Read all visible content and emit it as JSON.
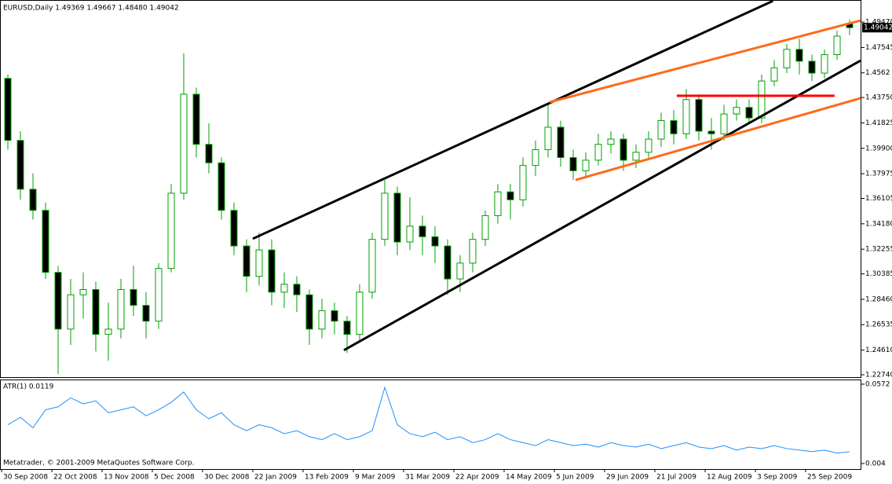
{
  "chart_data": {
    "type": "candlestick",
    "title": "EURUSD,Daily  1.49369 1.49667 1.48480 1.49042",
    "categories": [
      "30 Sep 2008",
      null,
      null,
      null,
      "22 Oct 2008",
      null,
      null,
      null,
      "13 Nov 2008",
      null,
      null,
      null,
      "5 Dec 2008",
      null,
      null,
      null,
      "30 Dec 2008",
      null,
      null,
      null,
      "22 Jan 2009",
      null,
      null,
      null,
      "13 Feb 2009",
      null,
      null,
      null,
      "9 Mar 2009",
      null,
      null,
      null,
      "31 Mar 2009",
      null,
      null,
      null,
      "22 Apr 2009",
      null,
      null,
      null,
      "14 May 2009",
      null,
      null,
      null,
      "5 Jun 2009",
      null,
      null,
      null,
      "29 Jun 2009",
      null,
      null,
      null,
      "21 Jul 2009",
      null,
      null,
      null,
      "12 Aug 2009",
      null,
      null,
      null,
      "3 Sep 2009",
      null,
      null,
      null,
      "25 Sep 2009",
      null,
      null,
      null
    ],
    "open": [
      1.452,
      1.405,
      1.368,
      1.352,
      1.305,
      1.262,
      1.288,
      1.292,
      1.258,
      1.262,
      1.292,
      1.28,
      1.268,
      1.308,
      1.365,
      1.44,
      1.402,
      1.388,
      1.352,
      1.325,
      1.302,
      1.322,
      1.29,
      1.296,
      1.288,
      1.262,
      1.276,
      1.268,
      1.258,
      1.29,
      1.33,
      1.365,
      1.328,
      1.34,
      1.332,
      1.325,
      1.3,
      1.312,
      1.33,
      1.348,
      1.366,
      1.36,
      1.386,
      1.398,
      1.415,
      1.392,
      1.382,
      1.39,
      1.402,
      1.406,
      1.39,
      1.396,
      1.406,
      1.42,
      1.41,
      1.436,
      1.412,
      1.41,
      1.425,
      1.43,
      1.422,
      1.45,
      1.46,
      1.474,
      1.465,
      1.456,
      1.47,
      1.49369
    ],
    "high": [
      1.455,
      1.412,
      1.38,
      1.358,
      1.31,
      1.3,
      1.305,
      1.298,
      1.282,
      1.3,
      1.31,
      1.29,
      1.312,
      1.372,
      1.471,
      1.445,
      1.418,
      1.392,
      1.358,
      1.33,
      1.335,
      1.33,
      1.305,
      1.302,
      1.292,
      1.285,
      1.282,
      1.272,
      1.296,
      1.335,
      1.375,
      1.37,
      1.362,
      1.348,
      1.34,
      1.33,
      1.318,
      1.335,
      1.352,
      1.372,
      1.372,
      1.392,
      1.405,
      1.432,
      1.42,
      1.398,
      1.396,
      1.41,
      1.412,
      1.41,
      1.402,
      1.412,
      1.426,
      1.428,
      1.444,
      1.44,
      1.422,
      1.432,
      1.436,
      1.436,
      1.455,
      1.466,
      1.478,
      1.482,
      1.47,
      1.474,
      1.488,
      1.49667
    ],
    "low": [
      1.398,
      1.36,
      1.345,
      1.3,
      1.228,
      1.25,
      1.27,
      1.245,
      1.238,
      1.255,
      1.272,
      1.255,
      1.262,
      1.305,
      1.36,
      1.392,
      1.38,
      1.345,
      1.318,
      1.29,
      1.295,
      1.28,
      1.278,
      1.275,
      1.25,
      1.255,
      1.258,
      1.244,
      1.252,
      1.285,
      1.325,
      1.318,
      1.322,
      1.318,
      1.312,
      1.288,
      1.29,
      1.305,
      1.325,
      1.342,
      1.345,
      1.355,
      1.378,
      1.392,
      1.385,
      1.375,
      1.376,
      1.386,
      1.395,
      1.382,
      1.384,
      1.392,
      1.4,
      1.402,
      1.406,
      1.405,
      1.398,
      1.405,
      1.42,
      1.418,
      1.418,
      1.446,
      1.456,
      1.455,
      1.45,
      1.452,
      1.466,
      1.4848
    ],
    "close": [
      1.405,
      1.368,
      1.352,
      1.305,
      1.262,
      1.288,
      1.292,
      1.258,
      1.262,
      1.292,
      1.28,
      1.268,
      1.308,
      1.365,
      1.44,
      1.402,
      1.388,
      1.352,
      1.325,
      1.302,
      1.322,
      1.29,
      1.296,
      1.288,
      1.262,
      1.276,
      1.268,
      1.258,
      1.29,
      1.33,
      1.365,
      1.328,
      1.34,
      1.332,
      1.325,
      1.3,
      1.312,
      1.33,
      1.348,
      1.366,
      1.36,
      1.386,
      1.398,
      1.415,
      1.392,
      1.382,
      1.39,
      1.402,
      1.406,
      1.39,
      1.396,
      1.406,
      1.42,
      1.41,
      1.436,
      1.412,
      1.41,
      1.425,
      1.43,
      1.422,
      1.45,
      1.46,
      1.474,
      1.465,
      1.456,
      1.47,
      1.484,
      1.49042
    ],
    "up_color": "#ffffff",
    "down_color": "#000000",
    "wick_color": "#00a000",
    "ylim": [
      1.2256,
      1.5114
    ],
    "yticks": [
      {
        "value": 1.4947,
        "label": "1.49470"
      },
      1.47545,
      1.4562,
      {
        "value": 1.4375,
        "label": "1.43750"
      },
      1.41825,
      {
        "value": 1.399,
        "label": "1.39900"
      },
      1.37975,
      1.36105,
      {
        "value": 1.3418,
        "label": "1.34180"
      },
      1.32255,
      1.30385,
      {
        "value": 1.2846,
        "label": "1.28460"
      },
      1.26535,
      {
        "value": 1.2461,
        "label": "1.24610"
      },
      {
        "value": 1.2274,
        "label": "1.22740"
      }
    ],
    "current_price": {
      "value": 1.49042,
      "label": "1.49042"
    },
    "trendlines": [
      {
        "color": "#000000",
        "start": [
          19.5,
          1.3305
        ],
        "end": [
          60.9,
          1.5107
        ]
      },
      {
        "color": "#000000",
        "start": [
          26.75,
          1.246
        ],
        "end": [
          67.875,
          1.4655
        ]
      },
      {
        "color": "#ff6a1a",
        "start": [
          43.125,
          1.434
        ],
        "end": [
          67.875,
          1.4959
        ]
      },
      {
        "color": "#ff6a1a",
        "start": [
          45.19,
          1.375
        ],
        "end": [
          67.875,
          1.437
        ]
      },
      {
        "color": "#ff0000",
        "start": [
          53.25,
          1.4388
        ],
        "end": [
          65.8,
          1.4388
        ]
      }
    ],
    "indicator": {
      "label": "ATR(1) 0.0119",
      "color": "#1e90ff",
      "values": [
        0.03,
        0.035,
        0.028,
        0.04,
        0.042,
        0.048,
        0.044,
        0.046,
        0.038,
        0.04,
        0.042,
        0.036,
        0.04,
        0.045,
        0.052,
        0.04,
        0.034,
        0.038,
        0.03,
        0.026,
        0.03,
        0.028,
        0.024,
        0.026,
        0.022,
        0.02,
        0.024,
        0.02,
        0.022,
        0.026,
        0.055,
        0.03,
        0.024,
        0.022,
        0.025,
        0.02,
        0.022,
        0.018,
        0.02,
        0.024,
        0.02,
        0.018,
        0.016,
        0.02,
        0.018,
        0.016,
        0.017,
        0.015,
        0.018,
        0.016,
        0.015,
        0.017,
        0.014,
        0.016,
        0.018,
        0.015,
        0.014,
        0.016,
        0.013,
        0.015,
        0.014,
        0.016,
        0.014,
        0.013,
        0.012,
        0.013,
        0.011,
        0.0119
      ],
      "ylim": [
        0.0008,
        0.0598
      ],
      "yticks": [
        0.0572,
        0.004
      ]
    },
    "copyright": "Metatrader, © 2001-2009 MetaQuotes Software Corp."
  }
}
